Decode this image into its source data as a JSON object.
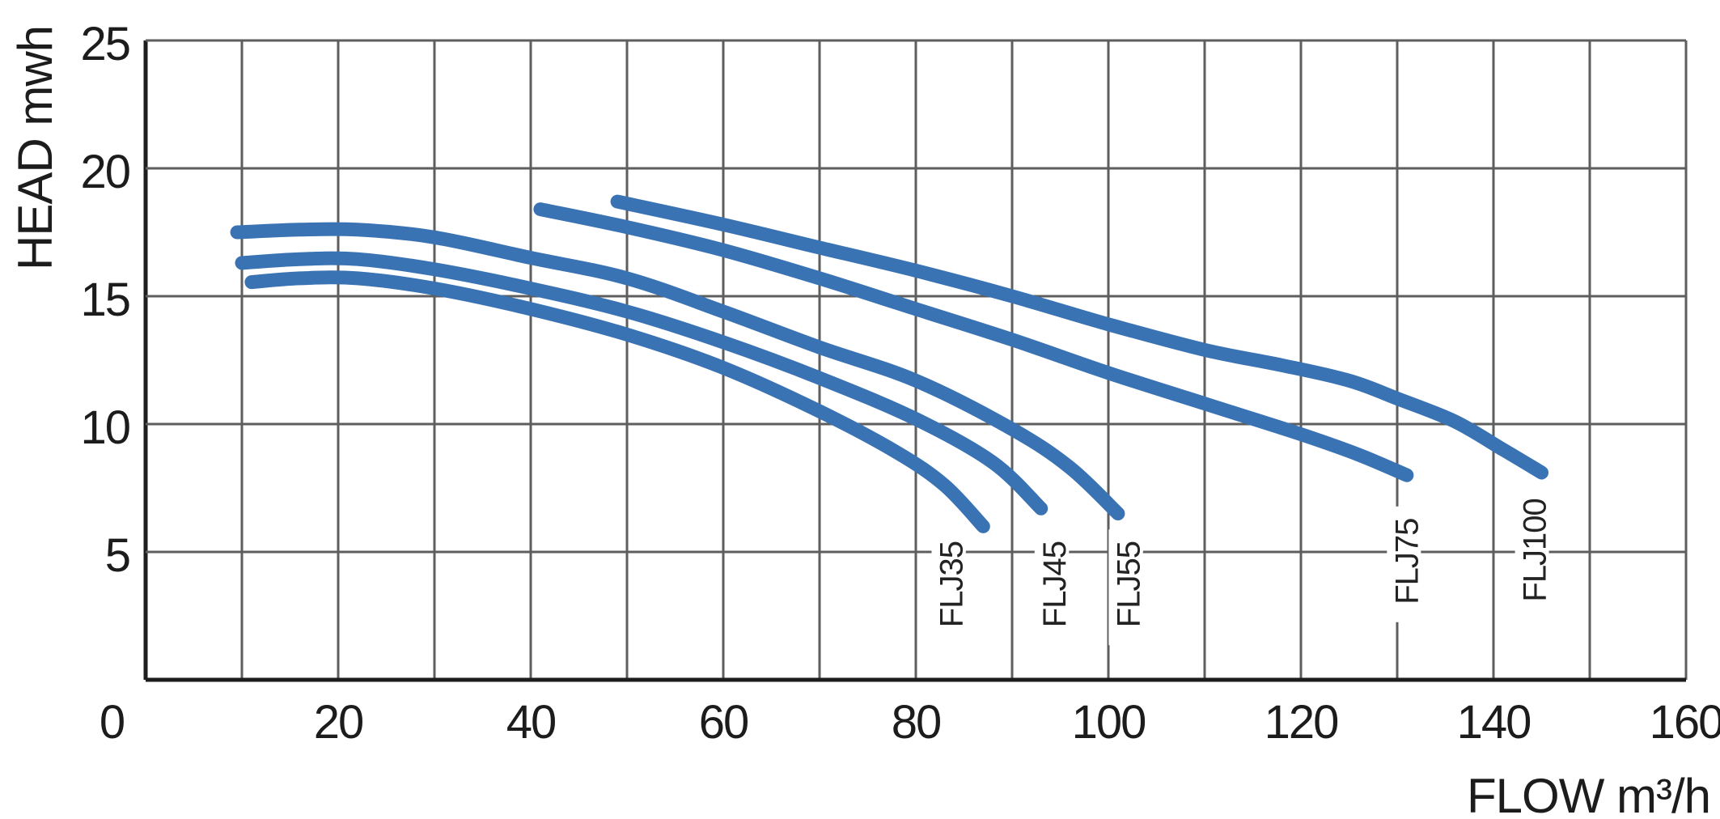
{
  "chart_data": {
    "type": "line",
    "title": "",
    "xlabel": "FLOW  m³/h",
    "ylabel": "HEAD mwh",
    "xlim": [
      0,
      160
    ],
    "ylim": [
      0,
      25
    ],
    "x_tick_labels": [
      0,
      20,
      40,
      60,
      80,
      100,
      120,
      140,
      160
    ],
    "y_tick_labels": [
      5,
      10,
      15,
      20,
      25
    ],
    "x_gridline_step": 10,
    "y_gridline_step": 5,
    "grid": true,
    "legend_position": "labels-at-curve-ends",
    "colors": {
      "curve": "#3A73B4",
      "grid": "#5E5E5E",
      "axis": "#1D1D1D",
      "text": "#1C1C1C"
    },
    "series": [
      {
        "name": "FLJ35",
        "label_at": [
          83.4,
          2.05
        ],
        "points": [
          [
            11,
            15.55
          ],
          [
            16,
            15.7
          ],
          [
            22,
            15.7
          ],
          [
            30,
            15.3
          ],
          [
            40,
            14.5
          ],
          [
            50,
            13.5
          ],
          [
            60,
            12.2
          ],
          [
            70,
            10.5
          ],
          [
            78,
            8.9
          ],
          [
            83,
            7.6
          ],
          [
            87,
            6.0
          ]
        ]
      },
      {
        "name": "FLJ45",
        "label_at": [
          94.1,
          2.05
        ],
        "points": [
          [
            10,
            16.3
          ],
          [
            16,
            16.45
          ],
          [
            22,
            16.45
          ],
          [
            30,
            16.05
          ],
          [
            40,
            15.3
          ],
          [
            50,
            14.4
          ],
          [
            60,
            13.2
          ],
          [
            70,
            11.8
          ],
          [
            80,
            10.2
          ],
          [
            88,
            8.5
          ],
          [
            93,
            6.7
          ]
        ]
      },
      {
        "name": "FLJ55",
        "label_at": [
          101.8,
          2.05
        ],
        "points": [
          [
            9.5,
            17.5
          ],
          [
            16,
            17.6
          ],
          [
            22,
            17.6
          ],
          [
            30,
            17.3
          ],
          [
            40,
            16.5
          ],
          [
            50,
            15.7
          ],
          [
            60,
            14.4
          ],
          [
            70,
            13.0
          ],
          [
            80,
            11.7
          ],
          [
            90,
            9.8
          ],
          [
            96,
            8.3
          ],
          [
            101,
            6.5
          ]
        ]
      },
      {
        "name": "FLJ75",
        "label_at": [
          130.7,
          2.95
        ],
        "points": [
          [
            41,
            18.4
          ],
          [
            50,
            17.7
          ],
          [
            60,
            16.8
          ],
          [
            70,
            15.7
          ],
          [
            80,
            14.5
          ],
          [
            90,
            13.3
          ],
          [
            100,
            12.0
          ],
          [
            110,
            10.8
          ],
          [
            120,
            9.6
          ],
          [
            126,
            8.8
          ],
          [
            131,
            8.0
          ]
        ]
      },
      {
        "name": "FLJ100",
        "label_at": [
          144.0,
          3.05
        ],
        "points": [
          [
            49,
            18.7
          ],
          [
            60,
            17.8
          ],
          [
            70,
            16.9
          ],
          [
            80,
            16.0
          ],
          [
            90,
            15.0
          ],
          [
            100,
            13.9
          ],
          [
            110,
            12.9
          ],
          [
            118,
            12.3
          ],
          [
            125,
            11.7
          ],
          [
            130,
            11.0
          ],
          [
            136,
            10.1
          ],
          [
            141,
            9.0
          ],
          [
            145,
            8.1
          ]
        ]
      }
    ]
  }
}
